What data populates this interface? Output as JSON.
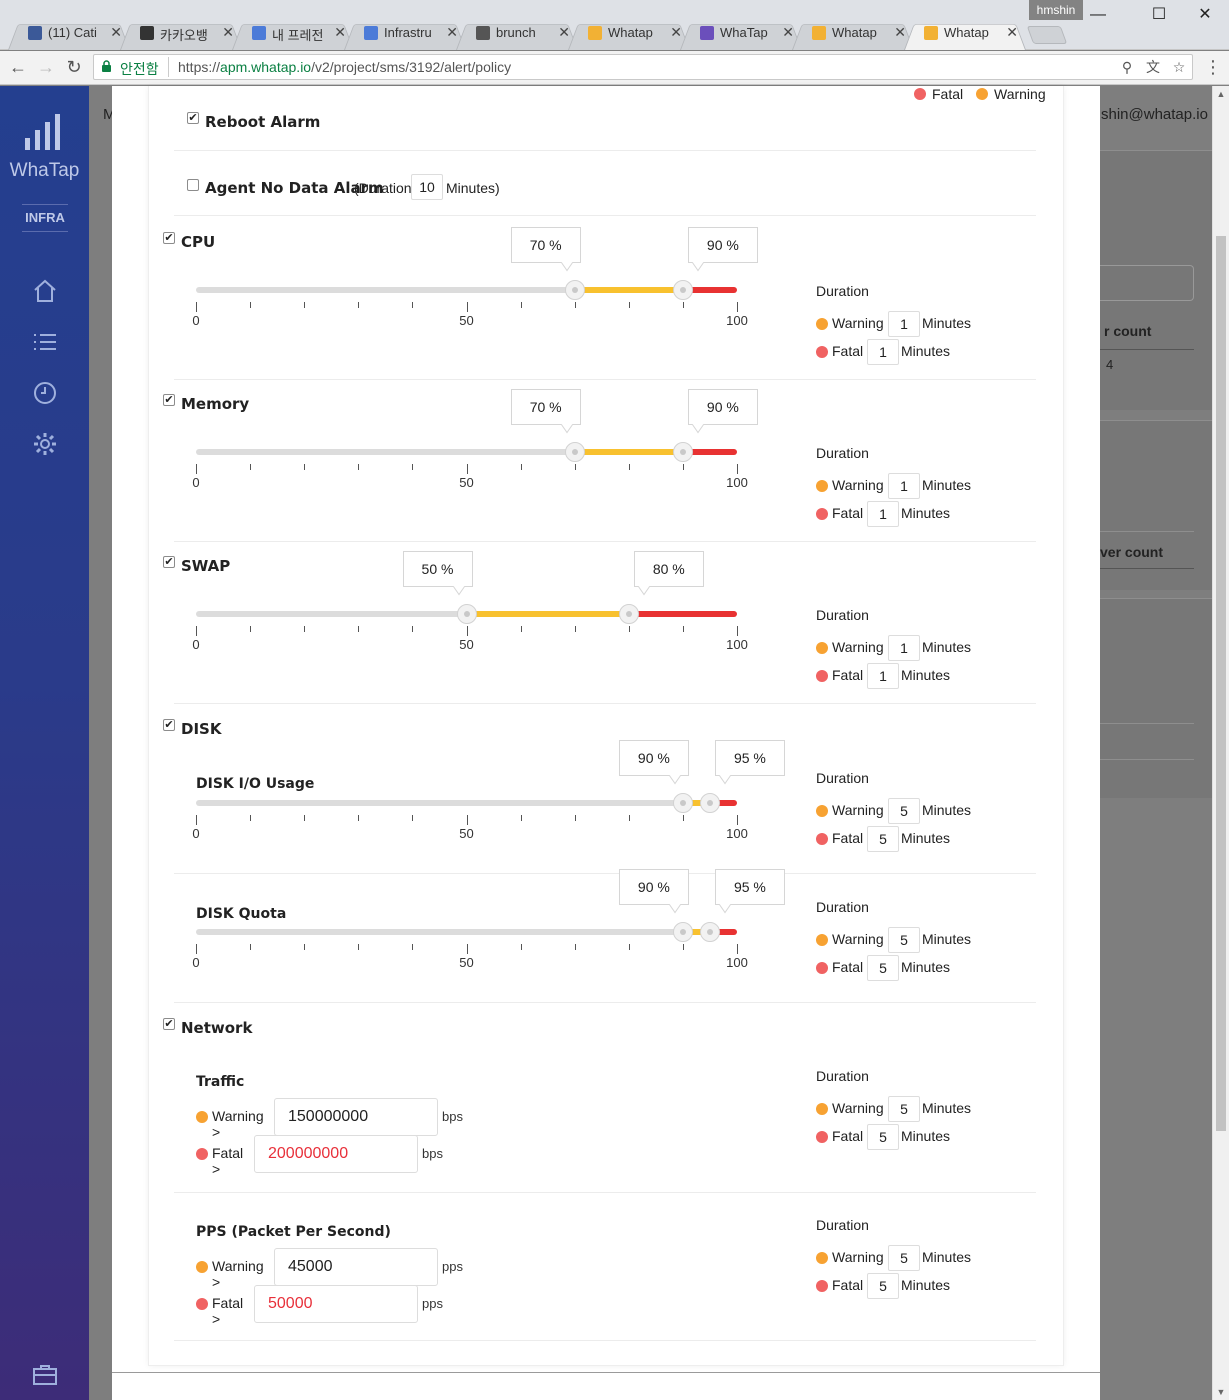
{
  "browser": {
    "user": "hmshin",
    "tabs": [
      {
        "label": "(11) Cati",
        "favicon": "facebook-icon",
        "color": "#3b5998"
      },
      {
        "label": "카카오뱅",
        "favicon": "kakao-icon",
        "color": "#333333"
      },
      {
        "label": "내 프레전",
        "favicon": "globe-icon",
        "color": "#4c7bd8"
      },
      {
        "label": "Infrastru",
        "favicon": "globe-icon",
        "color": "#4c7bd8"
      },
      {
        "label": "brunch",
        "favicon": "brunch-icon",
        "color": "#555555"
      },
      {
        "label": "Whatap",
        "favicon": "whatap-icon",
        "color": "#f2b134"
      },
      {
        "label": "WhaTap",
        "favicon": "list-icon",
        "color": "#6b4fbb"
      },
      {
        "label": "Whatap",
        "favicon": "whatap-icon",
        "color": "#f2b134"
      },
      {
        "label": "Whatap",
        "favicon": "whatap-icon",
        "color": "#f2b134",
        "active": true
      }
    ],
    "secure_label": "안전함",
    "url_scheme": "https://",
    "url_host": "apm.whatap.io",
    "url_path": "/v2/project/sms/3192/alert/policy"
  },
  "sidebar": {
    "logo": "WhaTap",
    "product": "INFRA"
  },
  "background": {
    "header_letter": "M",
    "user_email": "shin@whatap.io",
    "count_header": "r count",
    "count_value": "4",
    "server_count_header": "ver count"
  },
  "legend": {
    "fatal": "Fatal",
    "warning": "Warning"
  },
  "reboot_alarm": {
    "label": "Reboot Alarm",
    "checked": true
  },
  "agent_no_data": {
    "label": "Agent No Data Alarm",
    "prefix": "(Duration",
    "value": "10",
    "suffix": "Minutes)",
    "checked": false
  },
  "duration": {
    "title": "Duration",
    "warning": "Warning",
    "fatal": "Fatal",
    "unit": "Minutes"
  },
  "sliders": [
    {
      "key": "cpu",
      "label": "CPU",
      "checked": true,
      "warn": 70,
      "fatal": 90,
      "warn_label": "70 %",
      "fatal_label": "90 %",
      "warn_min": "1",
      "fatal_min": "1"
    },
    {
      "key": "memory",
      "label": "Memory",
      "checked": true,
      "warn": 70,
      "fatal": 90,
      "warn_label": "70 %",
      "fatal_label": "90 %",
      "warn_min": "1",
      "fatal_min": "1"
    },
    {
      "key": "swap",
      "label": "SWAP",
      "checked": true,
      "warn": 50,
      "fatal": 80,
      "warn_label": "50 %",
      "fatal_label": "80 %",
      "warn_min": "1",
      "fatal_min": "1"
    },
    {
      "key": "disk_io",
      "label": "DISK I/O Usage",
      "warn": 90,
      "fatal": 95,
      "warn_label": "90 %",
      "fatal_label": "95 %",
      "warn_min": "5",
      "fatal_min": "5"
    },
    {
      "key": "disk_quota",
      "label": "DISK Quota",
      "warn": 90,
      "fatal": 95,
      "warn_label": "90 %",
      "fatal_label": "95 %",
      "warn_min": "5",
      "fatal_min": "5"
    }
  ],
  "scale": {
    "min": "0",
    "mid": "50",
    "max": "100"
  },
  "disk": {
    "label": "DISK",
    "checked": true
  },
  "network": {
    "label": "Network",
    "checked": true,
    "warning_prefix": "Warning >",
    "fatal_prefix": "Fatal >",
    "traffic": {
      "label": "Traffic",
      "warn": "150000000",
      "fatal": "200000000",
      "unit": "bps",
      "warn_min": "5",
      "fatal_min": "5"
    },
    "pps": {
      "label": "PPS (Packet Per Second)",
      "warn": "45000",
      "fatal": "50000",
      "unit": "pps",
      "warn_min": "5",
      "fatal_min": "5"
    }
  },
  "colors": {
    "warning": "#f7a232",
    "fatal": "#f06262",
    "rail_warning": "#f8c12f",
    "rail_fatal": "#e83232"
  }
}
